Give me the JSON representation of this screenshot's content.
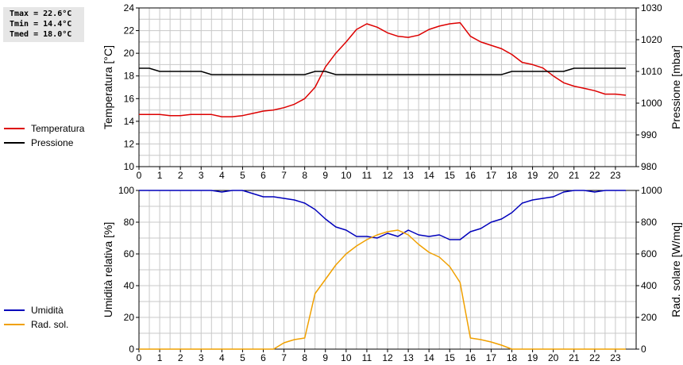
{
  "stats": {
    "tmax": "Tmax = 22.6°C",
    "tmin": "Tmin = 14.4°C",
    "tmed": "Tmed = 18.0°C"
  },
  "colors": {
    "temperatura": "#dd0000",
    "pressione": "#000000",
    "umidita": "#0000bb",
    "radsol": "#f0a000",
    "grid": "#c8c8c8"
  },
  "chart_data": [
    {
      "type": "line",
      "ylabel_left": "Temperatura [°C]",
      "ylabel_right": "Pressione [mbar]",
      "x_ticks": [
        0,
        1,
        2,
        3,
        4,
        5,
        6,
        7,
        8,
        9,
        10,
        11,
        12,
        13,
        14,
        15,
        16,
        17,
        18,
        19,
        20,
        21,
        22,
        23
      ],
      "ylim_left": [
        10,
        24
      ],
      "yticks_left": [
        10,
        12,
        14,
        16,
        18,
        20,
        22,
        24
      ],
      "ylim_right": [
        980,
        1030
      ],
      "yticks_right": [
        980,
        990,
        1000,
        1010,
        1020,
        1030
      ],
      "grid": true,
      "legend": "left",
      "series": [
        {
          "name": "Temperatura",
          "axis": "left",
          "x": [
            0,
            0.5,
            1,
            1.5,
            2,
            2.5,
            3,
            3.5,
            4,
            4.5,
            5,
            5.5,
            6,
            6.5,
            7,
            7.5,
            8,
            8.5,
            9,
            9.5,
            10,
            10.5,
            11,
            11.5,
            12,
            12.5,
            13,
            13.5,
            14,
            14.5,
            15,
            15.5,
            16,
            16.5,
            17,
            17.5,
            18,
            18.5,
            19,
            19.5,
            20,
            20.5,
            21,
            21.5,
            22,
            22.5,
            23,
            23.5
          ],
          "values": [
            14.6,
            14.6,
            14.6,
            14.5,
            14.5,
            14.6,
            14.6,
            14.6,
            14.4,
            14.4,
            14.5,
            14.7,
            14.9,
            15.0,
            15.2,
            15.5,
            16.0,
            17.0,
            18.8,
            20.0,
            21.0,
            22.1,
            22.6,
            22.3,
            21.8,
            21.5,
            21.4,
            21.6,
            22.1,
            22.4,
            22.6,
            22.7,
            21.5,
            21.0,
            20.7,
            20.4,
            19.9,
            19.2,
            19.0,
            18.7,
            18.0,
            17.4,
            17.1,
            16.9,
            16.7,
            16.4,
            16.4,
            16.3
          ]
        },
        {
          "name": "Pressione",
          "axis": "right",
          "x": [
            0,
            0.5,
            1,
            1.5,
            2,
            2.5,
            3,
            3.5,
            4,
            4.5,
            5,
            5.5,
            6,
            6.5,
            7,
            7.5,
            8,
            8.5,
            9,
            9.5,
            10,
            10.5,
            11,
            11.5,
            12,
            12.5,
            13,
            13.5,
            14,
            14.5,
            15,
            15.5,
            16,
            16.5,
            17,
            17.5,
            18,
            18.5,
            19,
            19.5,
            20,
            20.5,
            21,
            21.5,
            22,
            22.5,
            23,
            23.5
          ],
          "values": [
            1011,
            1011,
            1010,
            1010,
            1010,
            1010,
            1010,
            1009,
            1009,
            1009,
            1009,
            1009,
            1009,
            1009,
            1009,
            1009,
            1009,
            1010,
            1010,
            1009,
            1009,
            1009,
            1009,
            1009,
            1009,
            1009,
            1009,
            1009,
            1009,
            1009,
            1009,
            1009,
            1009,
            1009,
            1009,
            1009,
            1010,
            1010,
            1010,
            1010,
            1010,
            1010,
            1011,
            1011,
            1011,
            1011,
            1011,
            1011
          ]
        }
      ]
    },
    {
      "type": "line",
      "ylabel_left": "Umidità relativa [%]",
      "ylabel_right": "Rad. solare [W/mq]",
      "x_ticks": [
        0,
        1,
        2,
        3,
        4,
        5,
        6,
        7,
        8,
        9,
        10,
        11,
        12,
        13,
        14,
        15,
        16,
        17,
        18,
        19,
        20,
        21,
        22,
        23
      ],
      "ylim_left": [
        0,
        100
      ],
      "yticks_left": [
        0,
        20,
        40,
        60,
        80,
        100
      ],
      "ylim_right": [
        0,
        1000
      ],
      "yticks_right": [
        0,
        200,
        400,
        600,
        800,
        1000
      ],
      "grid": true,
      "legend": "left",
      "series": [
        {
          "name": "Umidità",
          "axis": "left",
          "x": [
            0,
            0.5,
            1,
            1.5,
            2,
            2.5,
            3,
            3.5,
            4,
            4.5,
            5,
            5.5,
            6,
            6.5,
            7,
            7.5,
            8,
            8.5,
            9,
            9.5,
            10,
            10.5,
            11,
            11.5,
            12,
            12.5,
            13,
            13.5,
            14,
            14.5,
            15,
            15.5,
            16,
            16.5,
            17,
            17.5,
            18,
            18.5,
            19,
            19.5,
            20,
            20.5,
            21,
            21.5,
            22,
            22.5,
            23,
            23.5
          ],
          "values": [
            100,
            100,
            100,
            100,
            100,
            100,
            100,
            100,
            99,
            100,
            100,
            98,
            96,
            96,
            95,
            94,
            92,
            88,
            82,
            77,
            75,
            71,
            71,
            70,
            73,
            71,
            75,
            72,
            71,
            72,
            69,
            69,
            74,
            76,
            80,
            82,
            86,
            92,
            94,
            95,
            96,
            99,
            100,
            100,
            99,
            100,
            100,
            100
          ]
        },
        {
          "name": "Rad. sol.",
          "axis": "right",
          "x": [
            0,
            0.5,
            1,
            1.5,
            2,
            2.5,
            3,
            3.5,
            4,
            4.5,
            5,
            5.5,
            6,
            6.5,
            7,
            7.5,
            8,
            8.5,
            9,
            9.5,
            10,
            10.5,
            11,
            11.5,
            12,
            12.5,
            13,
            13.5,
            14,
            14.5,
            15,
            15.5,
            16,
            16.5,
            17,
            17.5,
            18,
            18.5,
            19,
            19.5,
            20,
            20.5,
            21,
            21.5,
            22,
            22.5,
            23,
            23.5
          ],
          "values": [
            0,
            0,
            0,
            0,
            0,
            0,
            0,
            0,
            0,
            0,
            0,
            0,
            0,
            0,
            40,
            60,
            70,
            350,
            440,
            530,
            600,
            650,
            690,
            720,
            740,
            750,
            720,
            660,
            610,
            580,
            520,
            420,
            70,
            60,
            45,
            25,
            0,
            0,
            0,
            0,
            0,
            0,
            0,
            0,
            0,
            0,
            0,
            0
          ]
        }
      ]
    }
  ]
}
